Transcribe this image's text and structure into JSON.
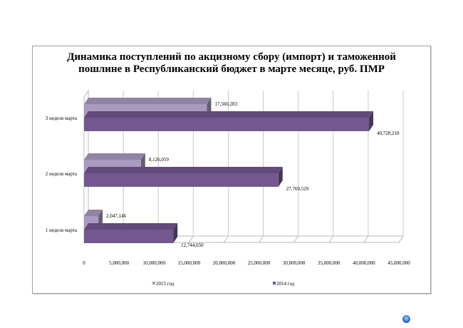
{
  "chart_data": {
    "type": "bar",
    "orientation": "horizontal",
    "title": "Динамика поступлений по акцизному сбору (импорт) и таможенной пошлине в Республиканский бюджет в марте месяце, руб. ПМР",
    "title_lines": [
      "Динамика поступлений по акцизному сбору (импорт) и таможенной",
      "пошлине в Республиканский бюджет в марте месяце, руб. ПМР"
    ],
    "categories": [
      "1 неделя марта",
      "2 неделя марта",
      "3 неделя марта"
    ],
    "series": [
      {
        "name": "2015 год",
        "color": "#a99bc0",
        "values": [
          2047146,
          8126059,
          17560283
        ],
        "labels": [
          "2,047,146",
          "8,126,059",
          "17,560,283"
        ]
      },
      {
        "name": "2014 год",
        "color": "#735890",
        "values": [
          12744650,
          27769529,
          40728218
        ],
        "labels": [
          "12,744,650",
          "27,769,529",
          "40,728,218"
        ]
      }
    ],
    "xlim": [
      0,
      45000000
    ],
    "xticks": [
      0,
      5000000,
      10000000,
      15000000,
      20000000,
      25000000,
      30000000,
      35000000,
      40000000,
      45000000
    ],
    "xtick_labels": [
      "0",
      "5,000,000",
      "10,000,000",
      "15,000,000",
      "20,000,000",
      "25,000,000",
      "30,000,000",
      "35,000,000",
      "40,000,000",
      "45,000,000"
    ],
    "grid": true,
    "legend": "bottom",
    "xlabel": "",
    "ylabel": ""
  }
}
